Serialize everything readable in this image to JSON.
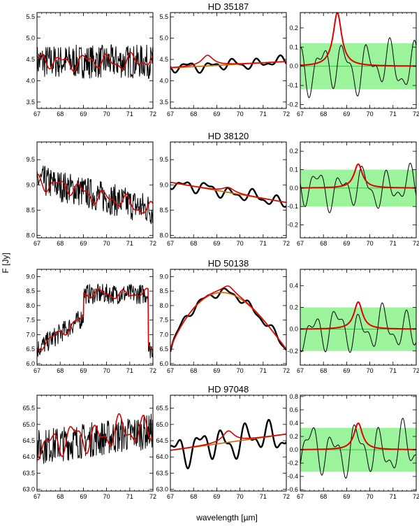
{
  "figure": {
    "ylabel": "F [Jy]",
    "xlabel": "wavelength [µm]"
  },
  "chart_data": [
    {
      "type": "line",
      "title": "HD 35187",
      "x": {
        "range": [
          67,
          72
        ],
        "ticks": [
          67,
          68,
          69,
          70,
          71,
          72
        ]
      },
      "panels": [
        {
          "kind": "raw",
          "ylim": [
            3.35,
            5.6
          ],
          "yticks": [
            "3.5",
            "4.0",
            "4.5",
            "5.0",
            "5.5"
          ],
          "signal": {
            "base": 4.45,
            "slope": 0.0,
            "noise": 0.4
          },
          "smooth": {
            "base": 4.45,
            "slope": 0.0,
            "amp": 0.12
          }
        },
        {
          "kind": "smoothed",
          "ylim": [
            3.35,
            5.6
          ],
          "yticks": [
            "3.5",
            "4.0",
            "4.5",
            "5.0",
            "5.5"
          ],
          "continuum": {
            "start": 4.3,
            "end": 4.45
          },
          "line_fit": {
            "center": 68.6,
            "width": 0.3,
            "height": 0.25
          },
          "wiggle_amp": 0.1
        },
        {
          "kind": "residual",
          "ylim": [
            -0.22,
            0.28
          ],
          "yticks": [
            "-0.2",
            "-0.1",
            "0.0",
            "0.1",
            "0.2"
          ],
          "band": [
            -0.12,
            0.12
          ],
          "line_fit": {
            "center": 68.6,
            "width": 0.22,
            "height": 0.28
          },
          "wiggle_amp": 0.12
        }
      ]
    },
    {
      "type": "line",
      "title": "HD 38120",
      "x": {
        "range": [
          67,
          72
        ],
        "ticks": [
          67,
          68,
          69,
          70,
          71,
          72
        ]
      },
      "panels": [
        {
          "kind": "raw",
          "ylim": [
            7.95,
            9.85
          ],
          "yticks": [
            "8.0",
            "8.5",
            "9.0",
            "9.5"
          ],
          "signal": {
            "base": 9.1,
            "slope": -0.12,
            "noise": 0.32
          },
          "smooth": {
            "base": 9.1,
            "slope": -0.12,
            "amp": 0.1
          }
        },
        {
          "kind": "smoothed",
          "ylim": [
            7.95,
            9.85
          ],
          "yticks": [
            "8.0",
            "8.5",
            "9.0",
            "9.5"
          ],
          "continuum": {
            "start": 9.05,
            "end": 8.65
          },
          "line_fit": {
            "center": 69.5,
            "width": 0.3,
            "height": 0.1
          },
          "wiggle_amp": 0.1
        },
        {
          "kind": "residual",
          "ylim": [
            -0.27,
            0.25
          ],
          "yticks": [
            "-0.2",
            "-0.1",
            "0.0",
            "0.1",
            "0.2"
          ],
          "band": [
            -0.1,
            0.1
          ],
          "line_fit": {
            "center": 69.5,
            "width": 0.22,
            "height": 0.13
          },
          "wiggle_amp": 0.1
        }
      ]
    },
    {
      "type": "line",
      "title": "HD 50138",
      "x": {
        "range": [
          67,
          72
        ],
        "ticks": [
          67,
          68,
          69,
          70,
          71,
          72
        ]
      },
      "panels": [
        {
          "kind": "raw",
          "ylim": [
            5.95,
            9.25
          ],
          "yticks": [
            "6.0",
            "6.5",
            "7.0",
            "7.5",
            "8.0",
            "8.5",
            "9.0"
          ],
          "signal": {
            "base": 6.5,
            "slope": 0.0,
            "noise": 0.35,
            "hump": 8.4
          },
          "smooth": {
            "base": 6.5,
            "slope": 0.0,
            "amp": 0.1,
            "hump": 8.4
          }
        },
        {
          "kind": "smoothed",
          "ylim": [
            5.95,
            9.25
          ],
          "yticks": [
            "6.0",
            "6.5",
            "7.0",
            "7.5",
            "8.0",
            "8.5",
            "9.0"
          ],
          "continuum": {
            "start": 6.5,
            "end": 6.5,
            "peak": 8.45
          },
          "line_fit": {
            "center": 69.5,
            "width": 0.3,
            "height": 0.25
          },
          "wiggle_amp": 0.12
        },
        {
          "kind": "residual",
          "ylim": [
            -0.33,
            0.55
          ],
          "yticks": [
            "-0.2",
            "0.0",
            "0.2",
            "0.4"
          ],
          "band": [
            -0.2,
            0.2
          ],
          "line_fit": {
            "center": 69.5,
            "width": 0.22,
            "height": 0.25
          },
          "wiggle_amp": 0.18
        }
      ]
    },
    {
      "type": "line",
      "title": "HD 97048",
      "x": {
        "range": [
          67,
          72
        ],
        "ticks": [
          67,
          68,
          69,
          70,
          71,
          72
        ]
      },
      "panels": [
        {
          "kind": "raw",
          "ylim": [
            62.95,
            65.9
          ],
          "yticks": [
            "63.0",
            "63.5",
            "64.0",
            "64.5",
            "65.0",
            "65.5"
          ],
          "signal": {
            "base": 64.3,
            "slope": 0.1,
            "noise": 0.55
          },
          "smooth": {
            "base": 64.4,
            "slope": 0.1,
            "amp": 0.3
          }
        },
        {
          "kind": "smoothed",
          "ylim": [
            62.95,
            65.9
          ],
          "yticks": [
            "63.0",
            "63.5",
            "64.0",
            "64.5",
            "65.0",
            "65.5"
          ],
          "continuum": {
            "start": 64.2,
            "end": 64.7
          },
          "line_fit": {
            "center": 69.5,
            "width": 0.3,
            "height": 0.35
          },
          "wiggle_amp": 0.4
        },
        {
          "kind": "residual",
          "ylim": [
            -0.62,
            0.82
          ],
          "yticks": [
            "-0.6",
            "-0.4",
            "-0.2",
            "0.0",
            "0.2",
            "0.4",
            "0.6",
            "0.8"
          ],
          "band": [
            -0.33,
            0.33
          ],
          "line_fit": {
            "center": 69.5,
            "width": 0.22,
            "height": 0.4
          },
          "wiggle_amp": 0.35
        }
      ]
    }
  ],
  "colors": {
    "data": "#000000",
    "fit": "#e00000",
    "continuum": "#cc6600",
    "band": "#66ee66",
    "zero": "#22aa22"
  }
}
